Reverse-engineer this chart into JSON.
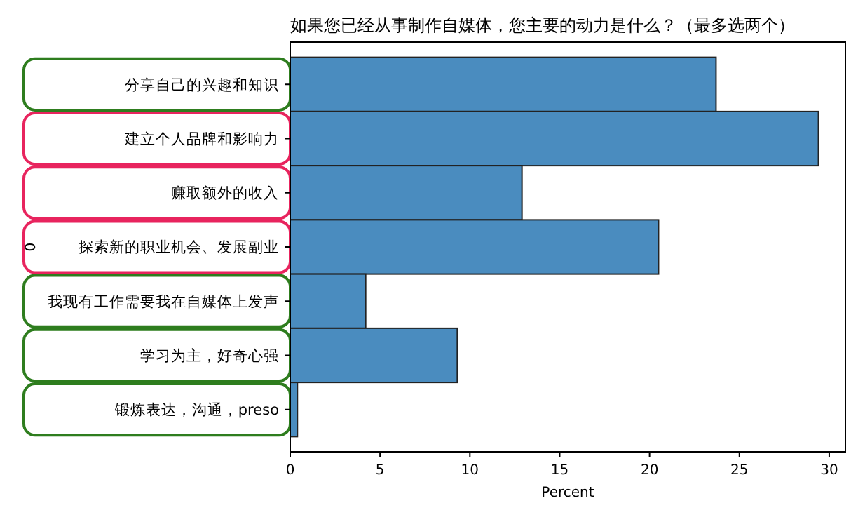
{
  "chart_data": {
    "type": "bar",
    "orientation": "horizontal",
    "title": "如果您已经从事制作自媒体，您主要的动力是什么？（最多选两个）",
    "xlabel": "Percent",
    "ylabel": "0",
    "categories": [
      "分享自己的兴趣和知识",
      "建立个人品牌和影响力",
      "赚取额外的收入",
      "探索新的职业机会、发展副业",
      "我现有工作需要我在自媒体上发声",
      "学习为主，好奇心强",
      "锻炼表达，沟通，preso"
    ],
    "values": [
      23.7,
      29.4,
      12.9,
      20.5,
      4.2,
      9.3,
      0.4
    ],
    "color": "#4a8cbf",
    "xlim": [
      0,
      30.9
    ],
    "xticks": [
      0,
      5,
      10,
      15,
      20,
      25,
      30
    ]
  }
}
